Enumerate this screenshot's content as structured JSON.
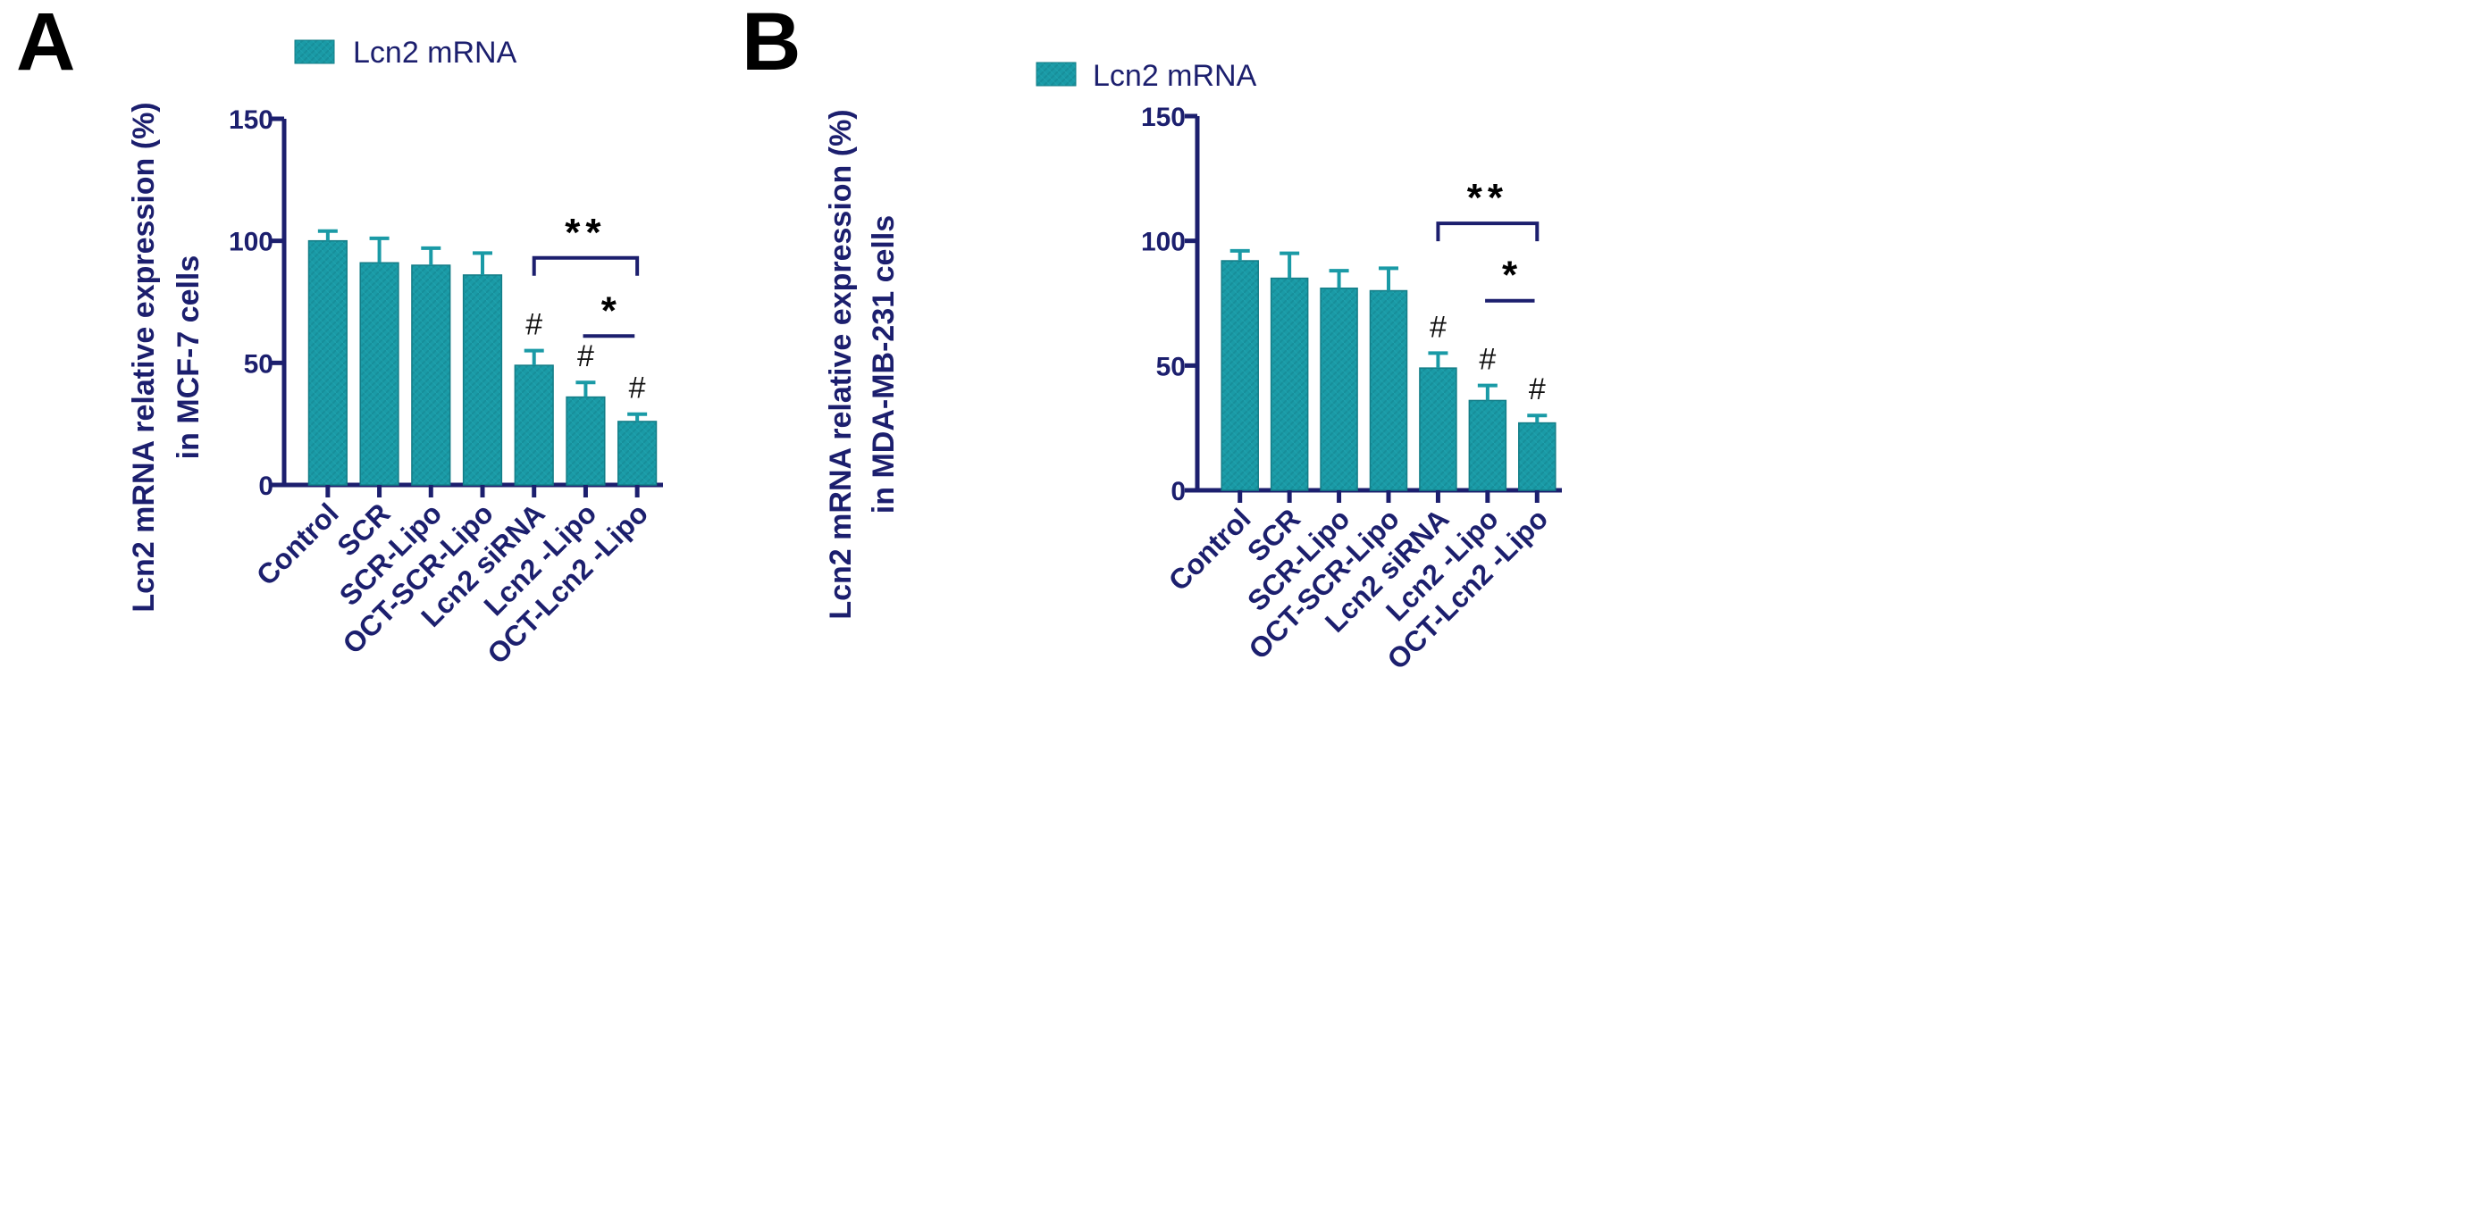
{
  "colors": {
    "bar": "#1a9aa6",
    "bar_edge": "#137d87",
    "axis": "#1c1f6e",
    "text": "#1c1f6e",
    "annotation": "#000000",
    "background": "#ffffff"
  },
  "chart_data": [
    {
      "type": "bar",
      "panel_label": "A",
      "legend": "Lcn2 mRNA",
      "ylabel": "Lcn2 mRNA relative expression (%)",
      "ylabel2": "in MCF-7 cells",
      "xlabel": "",
      "ylim": [
        0,
        150
      ],
      "yticks": [
        0,
        50,
        100,
        150
      ],
      "categories": [
        "Control",
        "SCR",
        "SCR-Lipo",
        "OCT-SCR-Lipo",
        "Lcn2 siRNA",
        "Lcn2 -Lipo",
        "OCT-Lcn2 -Lipo"
      ],
      "values": [
        100,
        91,
        90,
        86,
        49,
        36,
        26
      ],
      "errors": [
        4,
        10,
        7,
        9,
        6,
        6,
        3
      ],
      "marks": [
        "",
        "",
        "",
        "",
        "#",
        "#",
        "#"
      ],
      "brackets": [
        {
          "from": 4,
          "to": 6,
          "label": "**",
          "style": "bracket",
          "y": 93
        },
        {
          "from": 5,
          "to": 6,
          "label": "*",
          "style": "line",
          "y": 61
        }
      ]
    },
    {
      "type": "bar",
      "panel_label": "B",
      "legend": "Lcn2 mRNA",
      "ylabel": "Lcn2 mRNA relative expression (%)",
      "ylabel2": "in MDA-MB-231 cells",
      "xlabel": "",
      "ylim": [
        0,
        150
      ],
      "yticks": [
        0,
        50,
        100,
        150
      ],
      "categories": [
        "Control",
        "SCR",
        "SCR-Lipo",
        "OCT-SCR-Lipo",
        "Lcn2 siRNA",
        "Lcn2 -Lipo",
        "OCT-Lcn2 -Lipo"
      ],
      "values": [
        92,
        85,
        81,
        80,
        49,
        36,
        27
      ],
      "errors": [
        4,
        10,
        7,
        9,
        6,
        6,
        3
      ],
      "marks": [
        "",
        "",
        "",
        "",
        "#",
        "#",
        "#"
      ],
      "brackets": [
        {
          "from": 4,
          "to": 6,
          "label": "**",
          "style": "bracket",
          "y": 107
        },
        {
          "from": 5,
          "to": 6,
          "label": "*",
          "style": "line",
          "y": 76
        }
      ]
    }
  ]
}
